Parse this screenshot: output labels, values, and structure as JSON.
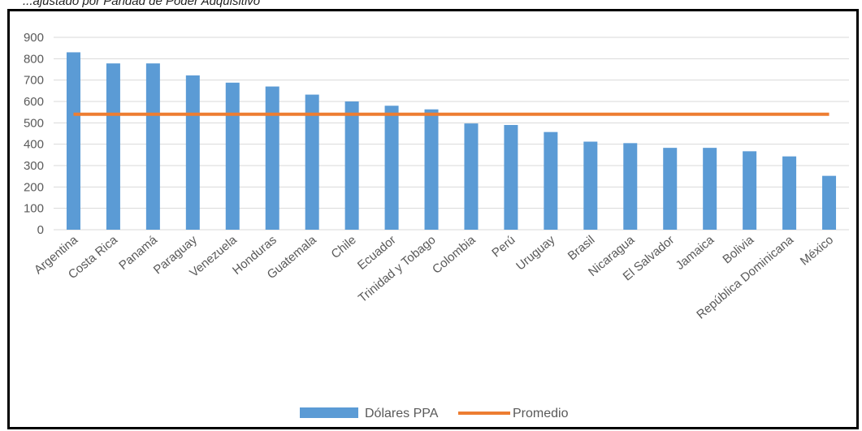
{
  "caption": "...ajustado por Paridad de Poder Adquisitivo",
  "chart_data": {
    "type": "bar",
    "categories": [
      "Argentina",
      "Costa Rica",
      "Panamá",
      "Paraguay",
      "Venezuela",
      "Honduras",
      "Guatemala",
      "Chile",
      "Ecuador",
      "Trinidad y Tobago",
      "Colombia",
      "Perú",
      "Uruguay",
      "Brasil",
      "Nicaragua",
      "El Salvador",
      "Jamaica",
      "Bolivia",
      "República Dominicana",
      "México"
    ],
    "series": [
      {
        "name": "Dólares PPA",
        "type": "bar",
        "color": "#5B9BD5",
        "values": [
          830,
          778,
          778,
          722,
          688,
          670,
          632,
          600,
          580,
          563,
          497,
          490,
          457,
          412,
          405,
          383,
          383,
          367,
          343,
          252
        ]
      },
      {
        "name": "Promedio",
        "type": "line",
        "color": "#ED7D31",
        "values": [
          540,
          540,
          540,
          540,
          540,
          540,
          540,
          540,
          540,
          540,
          540,
          540,
          540,
          540,
          540,
          540,
          540,
          540,
          540,
          540
        ]
      }
    ],
    "yticks": [
      0,
      100,
      200,
      300,
      400,
      500,
      600,
      700,
      800,
      900
    ],
    "ylim": [
      0,
      900
    ],
    "grid": true,
    "legend_position": "bottom"
  }
}
